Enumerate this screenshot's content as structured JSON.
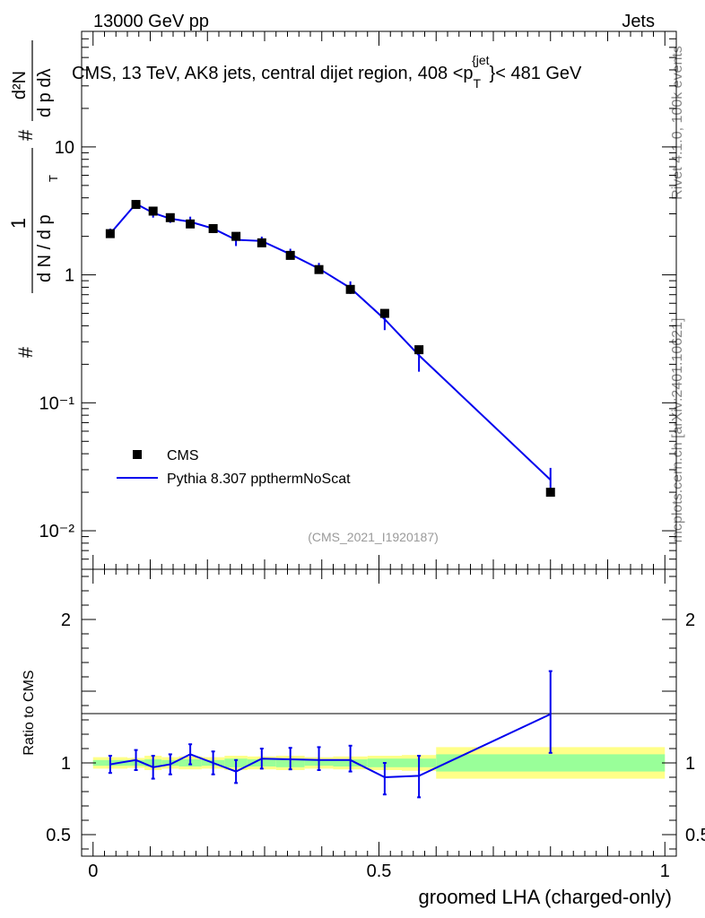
{
  "header": {
    "left": "13000 GeV pp",
    "right": "Jets"
  },
  "side_labels": {
    "rivet": "Rivet 4.1.0,  100k events",
    "mcplots": "mcplots.cern.ch [arXiv:2401.10621]"
  },
  "chart_data": [
    {
      "type": "scatter",
      "panel": "main",
      "title": "CMS, 13 TeV, AK8 jets, central dijet region, 408 <p_T^{jet}< 481 GeV",
      "title_parts": {
        "main": "CMS, 13 TeV, AK8 jets, central dijet region, 408 <p",
        "sub": "T",
        "sup": "{jet",
        "tail": "}< 481 GeV"
      },
      "analysis_tag": "(CMS_2021_I1920187)",
      "ylabel": "1/(dN/dp_T) d²N/(dp_T dλ)",
      "ylabel_parts": {
        "hash": "#",
        "one": "1",
        "dN": "d N / d p",
        "T": "T",
        "d2N": "d²N",
        "dpdl": "d p   dλ"
      },
      "yscale": "log",
      "ylim": [
        0.005,
        80
      ],
      "xlim": [
        -0.02,
        1.02
      ],
      "yticks": [
        {
          "value": 0.01,
          "label": "10⁻²"
        },
        {
          "value": 0.1,
          "label": "10⁻¹"
        },
        {
          "value": 1,
          "label": "1"
        },
        {
          "value": 10,
          "label": "10"
        }
      ],
      "legend_position": "bottom-left",
      "series": [
        {
          "name": "CMS",
          "kind": "points",
          "color": "#000000",
          "x": [
            0.03,
            0.075,
            0.105,
            0.135,
            0.17,
            0.21,
            0.25,
            0.295,
            0.345,
            0.395,
            0.45,
            0.51,
            0.57,
            0.8
          ],
          "y": [
            2.1,
            3.55,
            3.15,
            2.8,
            2.5,
            2.3,
            2.0,
            1.78,
            1.42,
            1.1,
            0.77,
            0.5,
            0.26,
            0.02
          ]
        },
        {
          "name": "Pythia 8.307 ppthermNoScat",
          "kind": "line",
          "color": "#0000ee",
          "x": [
            0.03,
            0.075,
            0.105,
            0.135,
            0.17,
            0.21,
            0.25,
            0.295,
            0.345,
            0.395,
            0.45,
            0.51,
            0.57,
            0.8
          ],
          "y": [
            2.1,
            3.6,
            3.05,
            2.75,
            2.6,
            2.3,
            1.88,
            1.84,
            1.45,
            1.12,
            0.79,
            0.45,
            0.235,
            0.025
          ],
          "err_low": [
            0.15,
            0.2,
            0.25,
            0.2,
            0.22,
            0.18,
            0.2,
            0.15,
            0.12,
            0.1,
            0.08,
            0.08,
            0.06,
            0.005
          ],
          "err_high": [
            0.2,
            0.25,
            0.25,
            0.2,
            0.25,
            0.18,
            0.22,
            0.15,
            0.15,
            0.12,
            0.1,
            0.06,
            0.03,
            0.006
          ]
        }
      ]
    },
    {
      "type": "line",
      "panel": "ratio",
      "xlabel": "groomed LHA (charged-only)",
      "ylabel": "Ratio to CMS",
      "ylim": [
        0.35,
        2.35
      ],
      "xlim": [
        -0.02,
        1.02
      ],
      "xticks": [
        {
          "value": 0,
          "label": "0"
        },
        {
          "value": 0.5,
          "label": "0.5"
        },
        {
          "value": 1,
          "label": "1"
        }
      ],
      "yticks": [
        {
          "value": 0.5,
          "label": "0.5"
        },
        {
          "value": 1,
          "label": "1"
        },
        {
          "value": 2,
          "label": "2"
        }
      ],
      "bins": [
        0,
        0.06,
        0.09,
        0.12,
        0.15,
        0.19,
        0.23,
        0.27,
        0.32,
        0.37,
        0.42,
        0.48,
        0.54,
        0.6,
        1.0
      ],
      "band_yellow": [
        0.04,
        0.035,
        0.05,
        0.04,
        0.045,
        0.04,
        0.05,
        0.045,
        0.05,
        0.04,
        0.045,
        0.05,
        0.055,
        0.11
      ],
      "band_green": [
        0.02,
        0.02,
        0.025,
        0.02,
        0.025,
        0.02,
        0.03,
        0.025,
        0.03,
        0.02,
        0.025,
        0.03,
        0.03,
        0.06
      ],
      "series": [
        {
          "name": "Pythia 8.307 ppthermNoScat / CMS",
          "color": "#0000ee",
          "x": [
            0.03,
            0.075,
            0.105,
            0.135,
            0.17,
            0.21,
            0.25,
            0.295,
            0.345,
            0.395,
            0.45,
            0.51,
            0.57,
            0.8
          ],
          "y": [
            0.99,
            1.02,
            0.97,
            0.99,
            1.06,
            1.0,
            0.94,
            1.03,
            1.025,
            1.02,
            1.02,
            0.9,
            0.91,
            1.34
          ],
          "err_low": [
            0.06,
            0.07,
            0.08,
            0.07,
            0.07,
            0.08,
            0.08,
            0.07,
            0.07,
            0.07,
            0.08,
            0.12,
            0.15,
            0.27
          ],
          "err_high": [
            0.06,
            0.07,
            0.08,
            0.07,
            0.07,
            0.08,
            0.08,
            0.07,
            0.08,
            0.09,
            0.1,
            0.1,
            0.14,
            0.3
          ]
        }
      ]
    }
  ]
}
